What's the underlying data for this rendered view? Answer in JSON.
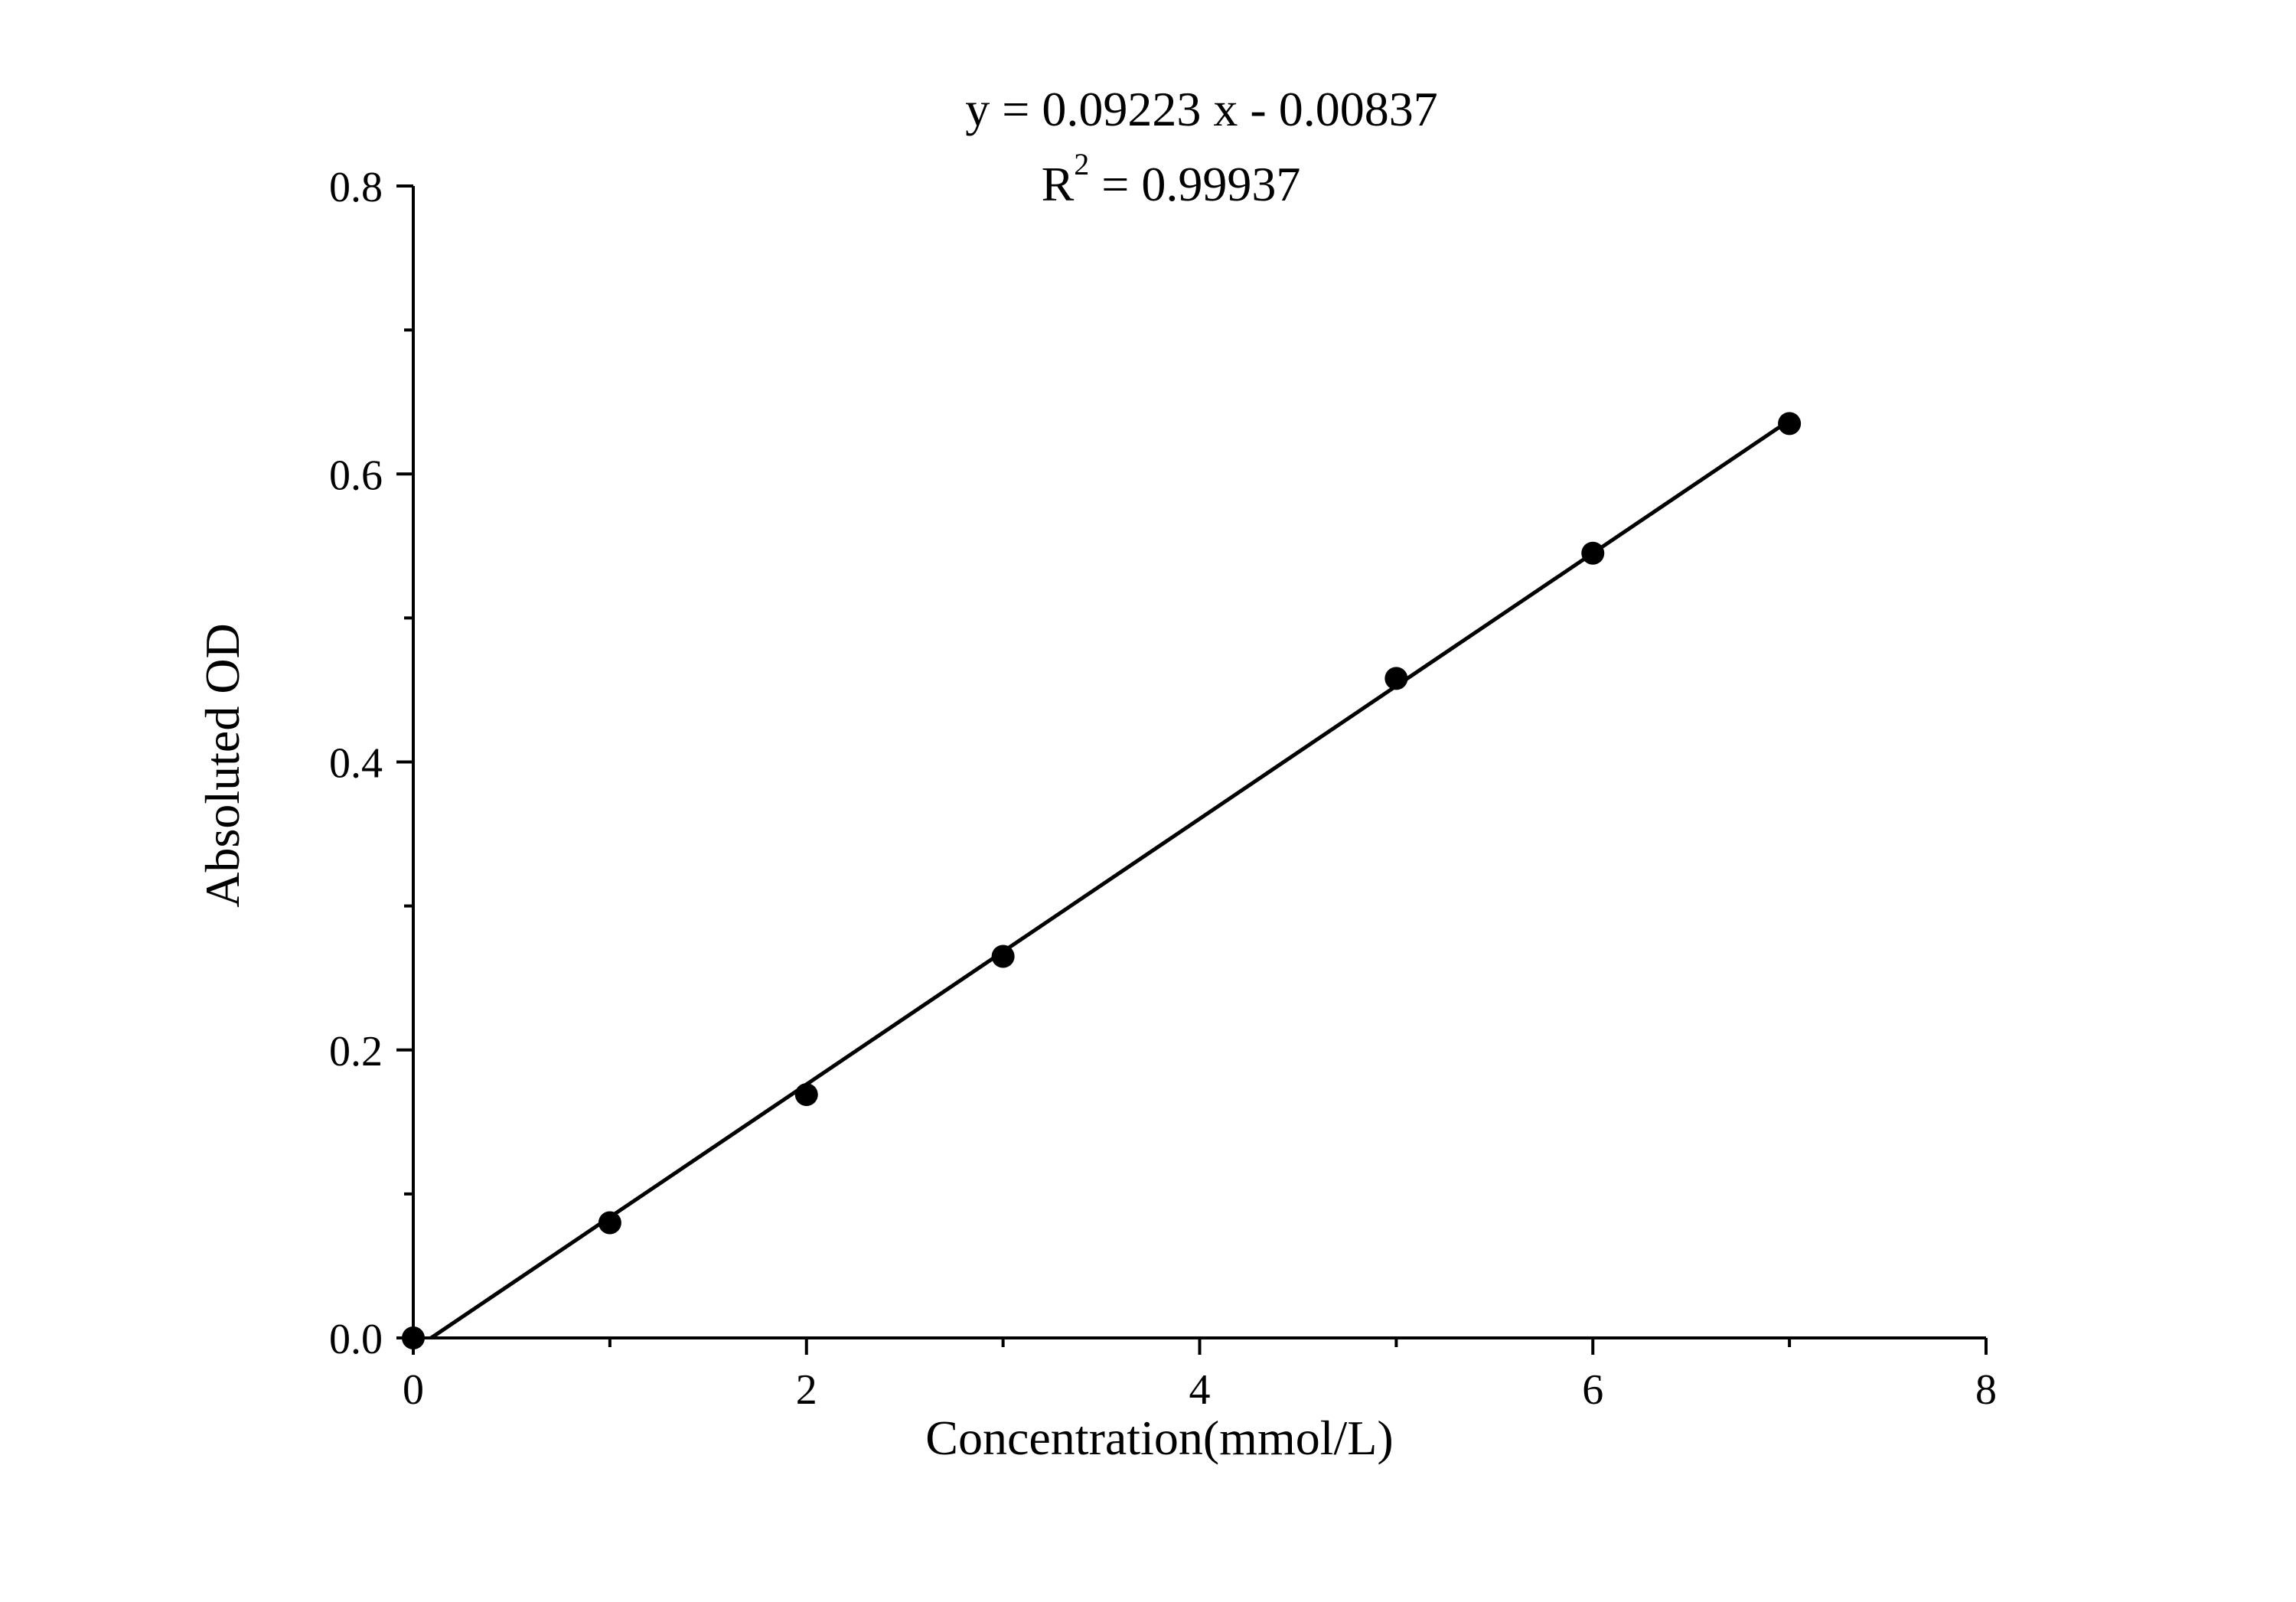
{
  "chart_data": {
    "type": "scatter",
    "title": "",
    "equation": "y = 0.09223 x - 0.00837",
    "r2_label": "R",
    "r2_sup": "2",
    "r2_value": " = 0.99937",
    "xlabel": "Concentration(mmol/L)",
    "ylabel": "Absoluted OD",
    "xlim": [
      0,
      8
    ],
    "ylim": [
      0,
      0.8
    ],
    "x_ticks": [
      "0",
      "2",
      "4",
      "6",
      "8"
    ],
    "x_tick_values": [
      0,
      2,
      4,
      6,
      8
    ],
    "x_minor_tick_values": [
      1,
      3,
      5,
      7
    ],
    "y_ticks": [
      "0.0",
      "0.2",
      "0.4",
      "0.6",
      "0.8"
    ],
    "y_tick_values": [
      0,
      0.2,
      0.4,
      0.6,
      0.8
    ],
    "y_minor_tick_values": [
      0.1,
      0.3,
      0.5,
      0.7
    ],
    "grid": false,
    "series": [
      {
        "x": [
          0,
          1,
          2,
          3,
          5,
          6,
          7
        ],
        "y": [
          0.0,
          0.08,
          0.169,
          0.265,
          0.458,
          0.545,
          0.635
        ]
      }
    ],
    "fit": {
      "slope": 0.09223,
      "intercept": -0.00837,
      "x_range": [
        0.09,
        7
      ]
    },
    "colors": {
      "marker": "#000000",
      "line": "#000000",
      "axis": "#000000"
    }
  }
}
